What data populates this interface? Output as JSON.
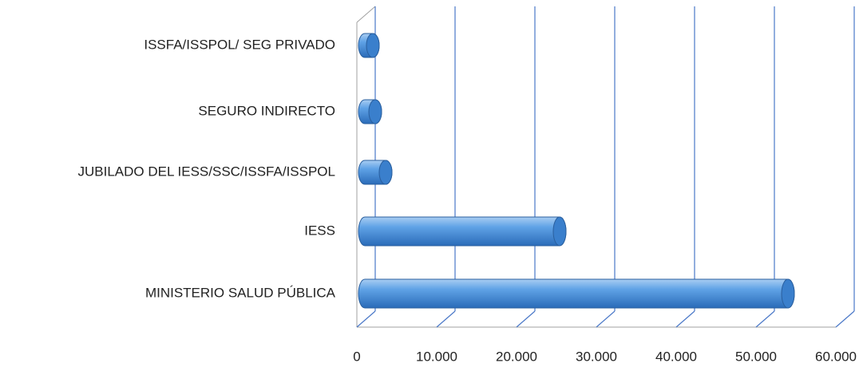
{
  "chart_data": {
    "type": "bar3d",
    "orientation": "horizontal",
    "categories": [
      "ISSFA/ISSPOL/ SEG PRIVADO",
      "SEGURO INDIRECTO",
      "JUBILADO DEL  IESS/SSC/ISSFA/ISSPOL",
      "IESS",
      "MINISTERIO SALUD PÚBLICA"
    ],
    "values": [
      1000,
      1300,
      2600,
      24400,
      53000
    ],
    "color": "#4a90d9",
    "xlim": [
      0,
      60000
    ],
    "xticks": [
      0,
      {
        "value": 10000,
        "label": "10.000"
      },
      {
        "value": 20000,
        "label": "20.000"
      },
      {
        "value": 30000,
        "label": "30.000"
      },
      {
        "value": 40000,
        "label": "40.000"
      },
      {
        "value": 50000,
        "label": "50.000"
      },
      {
        "value": 60000,
        "label": "60.000"
      }
    ],
    "grid": true
  }
}
